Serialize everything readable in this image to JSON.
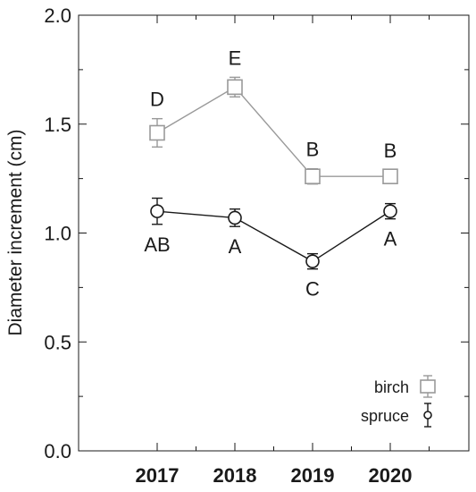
{
  "chart_data": {
    "type": "line",
    "xlabel": "",
    "ylabel": "Diameter increment (cm)",
    "x": [
      "2017",
      "2018",
      "2019",
      "2020"
    ],
    "ylim": [
      0.0,
      2.0
    ],
    "yticks": [
      "0.0",
      "0.5",
      "1.0",
      "1.5",
      "2.0"
    ],
    "grid": false,
    "legend_position": "bottom-right",
    "series": [
      {
        "name": "birch",
        "color": "#999999",
        "marker": "square",
        "values": [
          1.46,
          1.67,
          1.26,
          1.26
        ],
        "err": [
          0.065,
          0.045,
          0.035,
          0.03
        ],
        "letters": [
          "D",
          "E",
          "B",
          "B"
        ],
        "letters_side": "above"
      },
      {
        "name": "spruce",
        "color": "#1a1a1a",
        "marker": "circle",
        "values": [
          1.1,
          1.07,
          0.87,
          1.1
        ],
        "err": [
          0.06,
          0.04,
          0.035,
          0.035
        ],
        "letters": [
          "AB",
          "A",
          "C",
          "A"
        ],
        "letters_side": "below"
      }
    ]
  }
}
